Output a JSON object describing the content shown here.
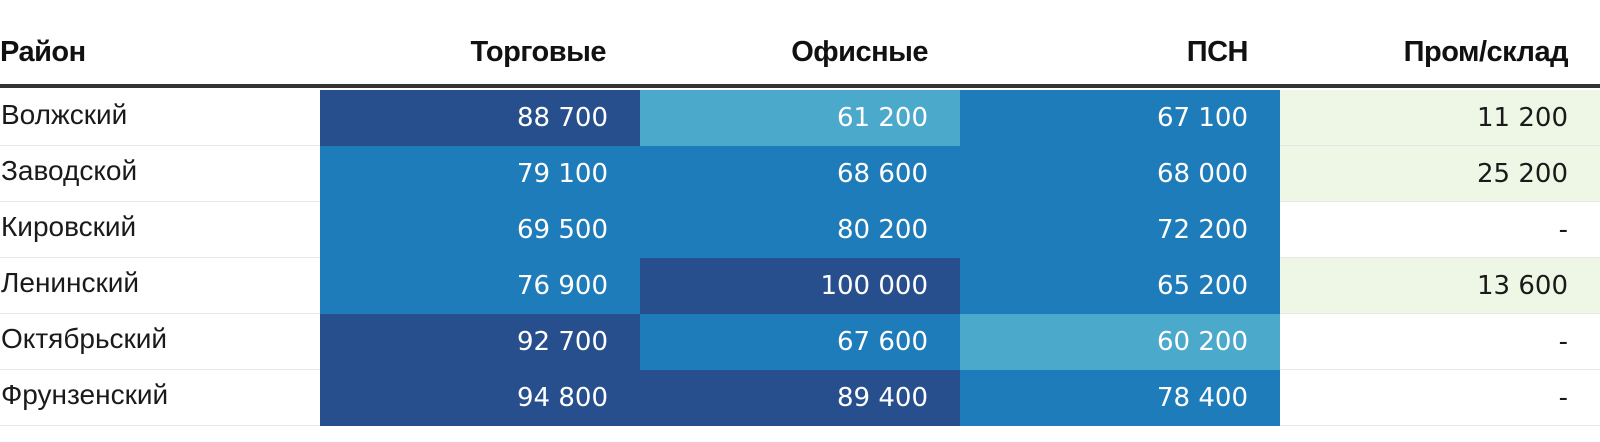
{
  "colors": {
    "dark": "#274f8e",
    "mid": "#1f7cba",
    "light": "#4ba9cc",
    "pale": "#eef7e6",
    "none": "#ffffff",
    "text_on_dark": "#ffffff",
    "text_on_pale": "#1a1a1a"
  },
  "chart_data": {
    "type": "table",
    "columns": [
      "Район",
      "Торговые",
      "Офисные",
      "ПСН",
      "Пром/склад"
    ],
    "rows": [
      {
        "district": "Волжский",
        "values": [
          "88 700",
          "61 200",
          "67 100",
          "11 200"
        ],
        "shade": [
          "dark",
          "light",
          "mid",
          "pale"
        ]
      },
      {
        "district": "Заводской",
        "values": [
          "79 100",
          "68 600",
          "68 000",
          "25 200"
        ],
        "shade": [
          "mid",
          "mid",
          "mid",
          "pale"
        ]
      },
      {
        "district": "Кировский",
        "values": [
          "69 500",
          "80 200",
          "72 200",
          "-"
        ],
        "shade": [
          "mid",
          "mid",
          "mid",
          "none"
        ]
      },
      {
        "district": "Ленинский",
        "values": [
          "76 900",
          "100 000",
          "65 200",
          "13 600"
        ],
        "shade": [
          "mid",
          "dark",
          "mid",
          "pale"
        ]
      },
      {
        "district": "Октябрьский",
        "values": [
          "92 700",
          "67 600",
          "60 200",
          "-"
        ],
        "shade": [
          "dark",
          "mid",
          "light",
          "none"
        ]
      },
      {
        "district": "Фрунзенский",
        "values": [
          "94 800",
          "89 400",
          "78 400",
          "-"
        ],
        "shade": [
          "dark",
          "dark",
          "mid",
          "none"
        ]
      }
    ]
  }
}
